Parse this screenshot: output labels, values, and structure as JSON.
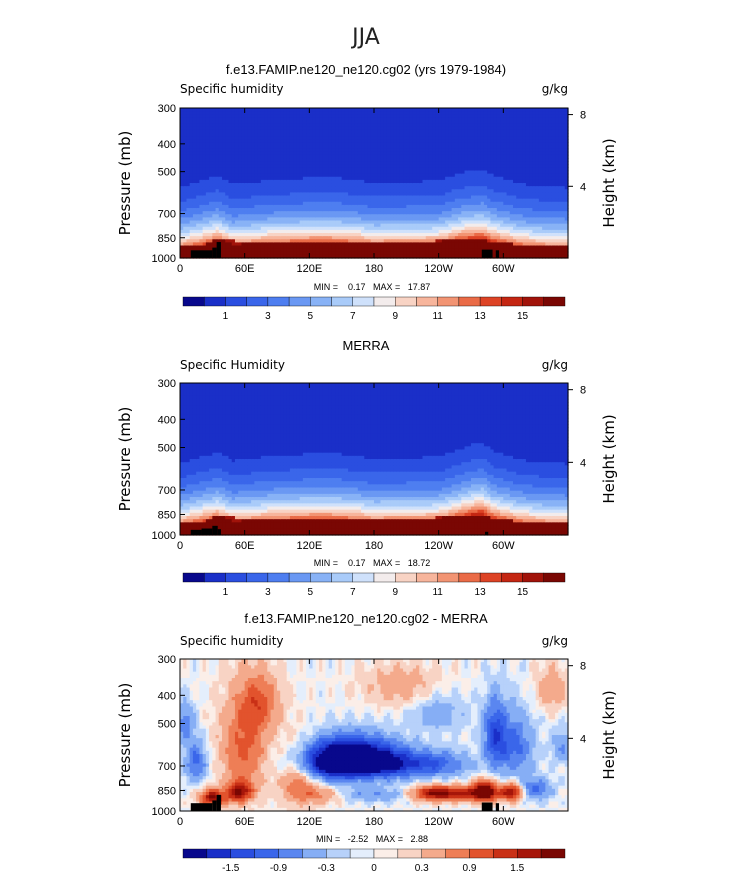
{
  "figure": {
    "season": "JJA"
  },
  "chart_data": [
    {
      "type": "heatmap",
      "title": "f.e13.FAMIP.ne120_ne120.cg02 (yrs 1979-1984)",
      "left_label": "Specific humidity",
      "units": "g/kg",
      "ylabel": "Pressure (mb)",
      "y2label": "Height (km)",
      "x_ticks": [
        "0",
        "60E",
        "120E",
        "180",
        "120W",
        "60W"
      ],
      "x_tick_values": [
        0,
        60,
        120,
        180,
        240,
        300
      ],
      "xlim": [
        0,
        360
      ],
      "y_ticks": [
        "300",
        "400",
        "500",
        "700",
        "850",
        "1000"
      ],
      "y_tick_values": [
        300,
        400,
        500,
        700,
        850,
        1000
      ],
      "ylim": [
        1000,
        300
      ],
      "y2_ticks": [
        "8",
        "4"
      ],
      "y2_tick_values": [
        8,
        4
      ],
      "stats": "MIN =    0.17   MAX =   17.87",
      "colorbar_labels": [
        "1",
        "3",
        "5",
        "7",
        "9",
        "11",
        "13",
        "15"
      ],
      "colorbar_levels": [
        0,
        1,
        2,
        3,
        4,
        5,
        6,
        7,
        8,
        9,
        10,
        11,
        12,
        13,
        14,
        15,
        16
      ],
      "colors": [
        "#08088c",
        "#1a2fc8",
        "#2a4ee0",
        "#3a66ea",
        "#4e7ef0",
        "#6a98f3",
        "#88b2f6",
        "#a9cbf9",
        "#cfe1fb",
        "#f3ecec",
        "#f8d3c4",
        "#f7b59c",
        "#f29473",
        "#ea6b47",
        "#dd4325",
        "#c42612",
        "#a1130a",
        "#7a0703"
      ],
      "profile": [
        [
          0,
          900,
          0.2
        ],
        [
          20,
          900,
          0.5
        ],
        [
          35,
          860,
          0.4
        ],
        [
          50,
          870,
          0.1
        ],
        [
          70,
          880,
          0.3
        ],
        [
          100,
          890,
          0.5
        ],
        [
          130,
          880,
          0.5
        ],
        [
          150,
          880,
          0.45
        ],
        [
          180,
          890,
          0.35
        ],
        [
          210,
          880,
          0.3
        ],
        [
          240,
          870,
          0.25
        ],
        [
          260,
          860,
          0.5
        ],
        [
          280,
          860,
          0.7
        ],
        [
          290,
          880,
          0.6
        ],
        [
          305,
          890,
          0.45
        ],
        [
          320,
          900,
          0.35
        ],
        [
          340,
          900,
          0.25
        ],
        [
          360,
          900,
          0.2
        ]
      ],
      "topography": [
        [
          10,
          30,
          940
        ],
        [
          30,
          34,
          920
        ],
        [
          34,
          38,
          880
        ],
        [
          280,
          290,
          935
        ],
        [
          293,
          296,
          940
        ]
      ]
    },
    {
      "type": "heatmap",
      "title": "MERRA",
      "left_label": "Specific Humidity",
      "units": "g/kg",
      "ylabel": "Pressure (mb)",
      "y2label": "Height (km)",
      "x_ticks": [
        "0",
        "60E",
        "120E",
        "180",
        "120W",
        "60W"
      ],
      "x_tick_values": [
        0,
        60,
        120,
        180,
        240,
        300
      ],
      "xlim": [
        0,
        360
      ],
      "y_ticks": [
        "300",
        "400",
        "500",
        "700",
        "850",
        "1000"
      ],
      "y_tick_values": [
        300,
        400,
        500,
        700,
        850,
        1000
      ],
      "ylim": [
        1000,
        300
      ],
      "y2_ticks": [
        "8",
        "4"
      ],
      "y2_tick_values": [
        8,
        4
      ],
      "stats": "MIN =    0.17   MAX =   18.72",
      "colorbar_labels": [
        "1",
        "3",
        "5",
        "7",
        "9",
        "11",
        "13",
        "15"
      ],
      "colorbar_levels": [
        0,
        1,
        2,
        3,
        4,
        5,
        6,
        7,
        8,
        9,
        10,
        11,
        12,
        13,
        14,
        15,
        16
      ],
      "colors": [
        "#08088c",
        "#1a2fc8",
        "#2a4ee0",
        "#3a66ea",
        "#4e7ef0",
        "#6a98f3",
        "#88b2f6",
        "#a9cbf9",
        "#cfe1fb",
        "#f3ecec",
        "#f8d3c4",
        "#f7b59c",
        "#f29473",
        "#ea6b47",
        "#dd4325",
        "#c42612",
        "#a1130a",
        "#7a0703"
      ],
      "profile": [
        [
          0,
          900,
          0.2
        ],
        [
          20,
          900,
          0.5
        ],
        [
          35,
          860,
          0.35
        ],
        [
          50,
          870,
          0.1
        ],
        [
          70,
          880,
          0.3
        ],
        [
          100,
          890,
          0.5
        ],
        [
          130,
          880,
          0.5
        ],
        [
          150,
          880,
          0.45
        ],
        [
          180,
          890,
          0.35
        ],
        [
          210,
          880,
          0.3
        ],
        [
          240,
          870,
          0.25
        ],
        [
          260,
          860,
          0.5
        ],
        [
          280,
          850,
          0.75
        ],
        [
          290,
          880,
          0.6
        ],
        [
          305,
          890,
          0.45
        ],
        [
          320,
          900,
          0.35
        ],
        [
          340,
          900,
          0.25
        ],
        [
          360,
          900,
          0.2
        ]
      ],
      "topography": [
        [
          10,
          20,
          960
        ],
        [
          20,
          30,
          950
        ],
        [
          30,
          35,
          930
        ],
        [
          35,
          38,
          955
        ],
        [
          283,
          286,
          975
        ]
      ]
    },
    {
      "type": "heatmap",
      "title": "f.e13.FAMIP.ne120_ne120.cg02 - MERRA",
      "left_label": "Specific humidity",
      "units": "g/kg",
      "ylabel": "Pressure (mb)",
      "y2label": "Height (km)",
      "x_ticks": [
        "0",
        "60E",
        "120E",
        "180",
        "120W",
        "60W"
      ],
      "x_tick_values": [
        0,
        60,
        120,
        180,
        240,
        300
      ],
      "xlim": [
        0,
        360
      ],
      "y_ticks": [
        "300",
        "400",
        "500",
        "700",
        "850",
        "1000"
      ],
      "y_tick_values": [
        300,
        400,
        500,
        700,
        850,
        1000
      ],
      "ylim": [
        1000,
        300
      ],
      "y2_ticks": [
        "8",
        "4"
      ],
      "y2_tick_values": [
        8,
        4
      ],
      "stats": "MIN =   -2.52   MAX =   2.88",
      "colorbar_labels": [
        "-1.5",
        "-0.9",
        "-0.3",
        "0",
        "0.3",
        "0.9",
        "1.5"
      ],
      "colorbar_levels": [
        -1.8,
        -1.5,
        -1.2,
        -0.9,
        -0.6,
        -0.3,
        -0.1,
        0,
        0.1,
        0.3,
        0.6,
        0.9,
        1.2,
        1.5,
        1.8
      ],
      "colors": [
        "#08088c",
        "#1a2fc8",
        "#2a4ee0",
        "#3a66ea",
        "#5a86f0",
        "#86aef5",
        "#b7d1fa",
        "#e4eefc",
        "#fbeee8",
        "#f8d3c4",
        "#f4aa8c",
        "#ee7e56",
        "#e2532d",
        "#c93016",
        "#a6160a",
        "#7a0703"
      ],
      "blobs": [
        [
          30,
          900,
          12,
          60,
          1.8
        ],
        [
          15,
          680,
          10,
          110,
          -1.0
        ],
        [
          5,
          500,
          8,
          80,
          -0.8
        ],
        [
          55,
          860,
          12,
          70,
          1.7
        ],
        [
          60,
          600,
          22,
          230,
          1.0
        ],
        [
          75,
          420,
          18,
          90,
          0.8
        ],
        [
          110,
          750,
          18,
          170,
          1.0
        ],
        [
          130,
          880,
          20,
          60,
          0.6
        ],
        [
          145,
          690,
          40,
          90,
          -2.2
        ],
        [
          160,
          620,
          40,
          90,
          -1.4
        ],
        [
          195,
          690,
          35,
          80,
          -1.3
        ],
        [
          240,
          690,
          30,
          70,
          -0.9
        ],
        [
          180,
          880,
          30,
          50,
          -0.6
        ],
        [
          205,
          370,
          35,
          60,
          0.5
        ],
        [
          235,
          870,
          20,
          50,
          1.6
        ],
        [
          270,
          870,
          28,
          50,
          1.4
        ],
        [
          240,
          460,
          25,
          70,
          -0.5
        ],
        [
          283,
          850,
          10,
          70,
          1.8
        ],
        [
          292,
          540,
          10,
          140,
          -1.2
        ],
        [
          310,
          600,
          18,
          150,
          -1.0
        ],
        [
          308,
          860,
          10,
          60,
          1.6
        ],
        [
          330,
          840,
          14,
          70,
          -1.0
        ],
        [
          345,
          380,
          15,
          70,
          0.5
        ],
        [
          355,
          600,
          10,
          80,
          -0.6
        ]
      ],
      "topography": [
        [
          10,
          30,
          940
        ],
        [
          30,
          34,
          920
        ],
        [
          34,
          38,
          880
        ],
        [
          280,
          290,
          935
        ],
        [
          293,
          296,
          940
        ]
      ]
    }
  ]
}
